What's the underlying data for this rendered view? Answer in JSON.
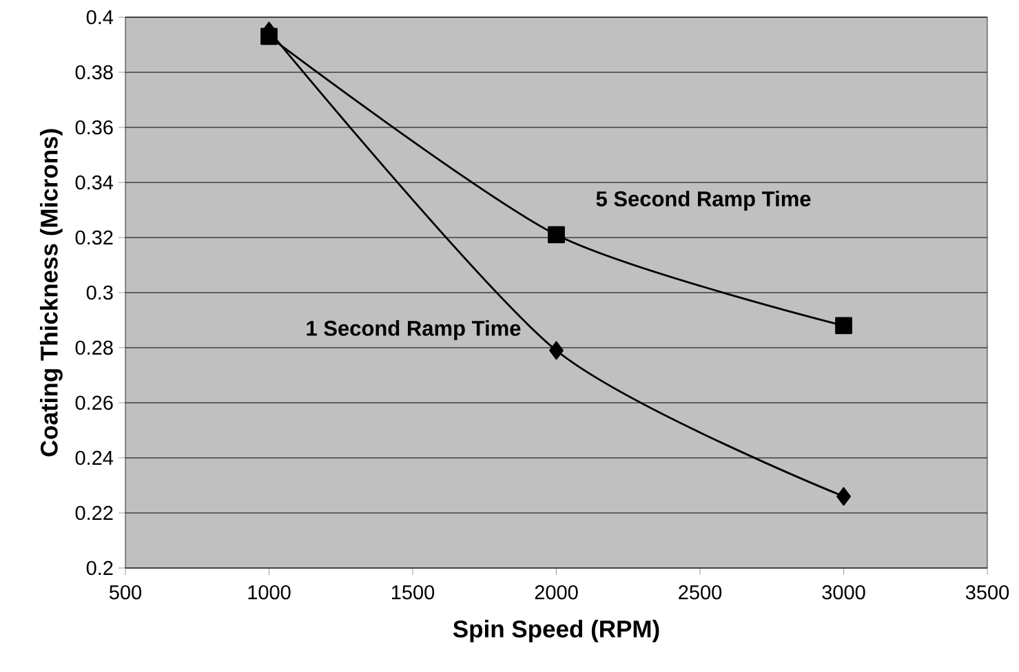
{
  "chart_data": {
    "type": "line",
    "xlabel": "Spin Speed (RPM)",
    "ylabel": "Coating Thickness (Microns)",
    "series": [
      {
        "name": "5 Second Ramp Time",
        "color": "#000000",
        "marker": "square",
        "x": [
          1000,
          2000,
          3000
        ],
        "values": [
          0.393,
          0.321,
          0.288
        ]
      },
      {
        "name": "1 Second Ramp Time",
        "color": "#000000",
        "marker": "diamond",
        "x": [
          1000,
          2000,
          3000
        ],
        "values": [
          0.395,
          0.279,
          0.226
        ]
      }
    ],
    "xlim": [
      500,
      3500
    ],
    "xticks": [
      500,
      1000,
      1500,
      2000,
      2500,
      3000,
      3500
    ],
    "ylim": [
      0.2,
      0.4
    ],
    "yticks": [
      0.2,
      0.22,
      0.24,
      0.26,
      0.28,
      0.3,
      0.32,
      0.34,
      0.36,
      0.38,
      0.4
    ],
    "grid": "y",
    "legend": false,
    "line_style": "solid"
  }
}
